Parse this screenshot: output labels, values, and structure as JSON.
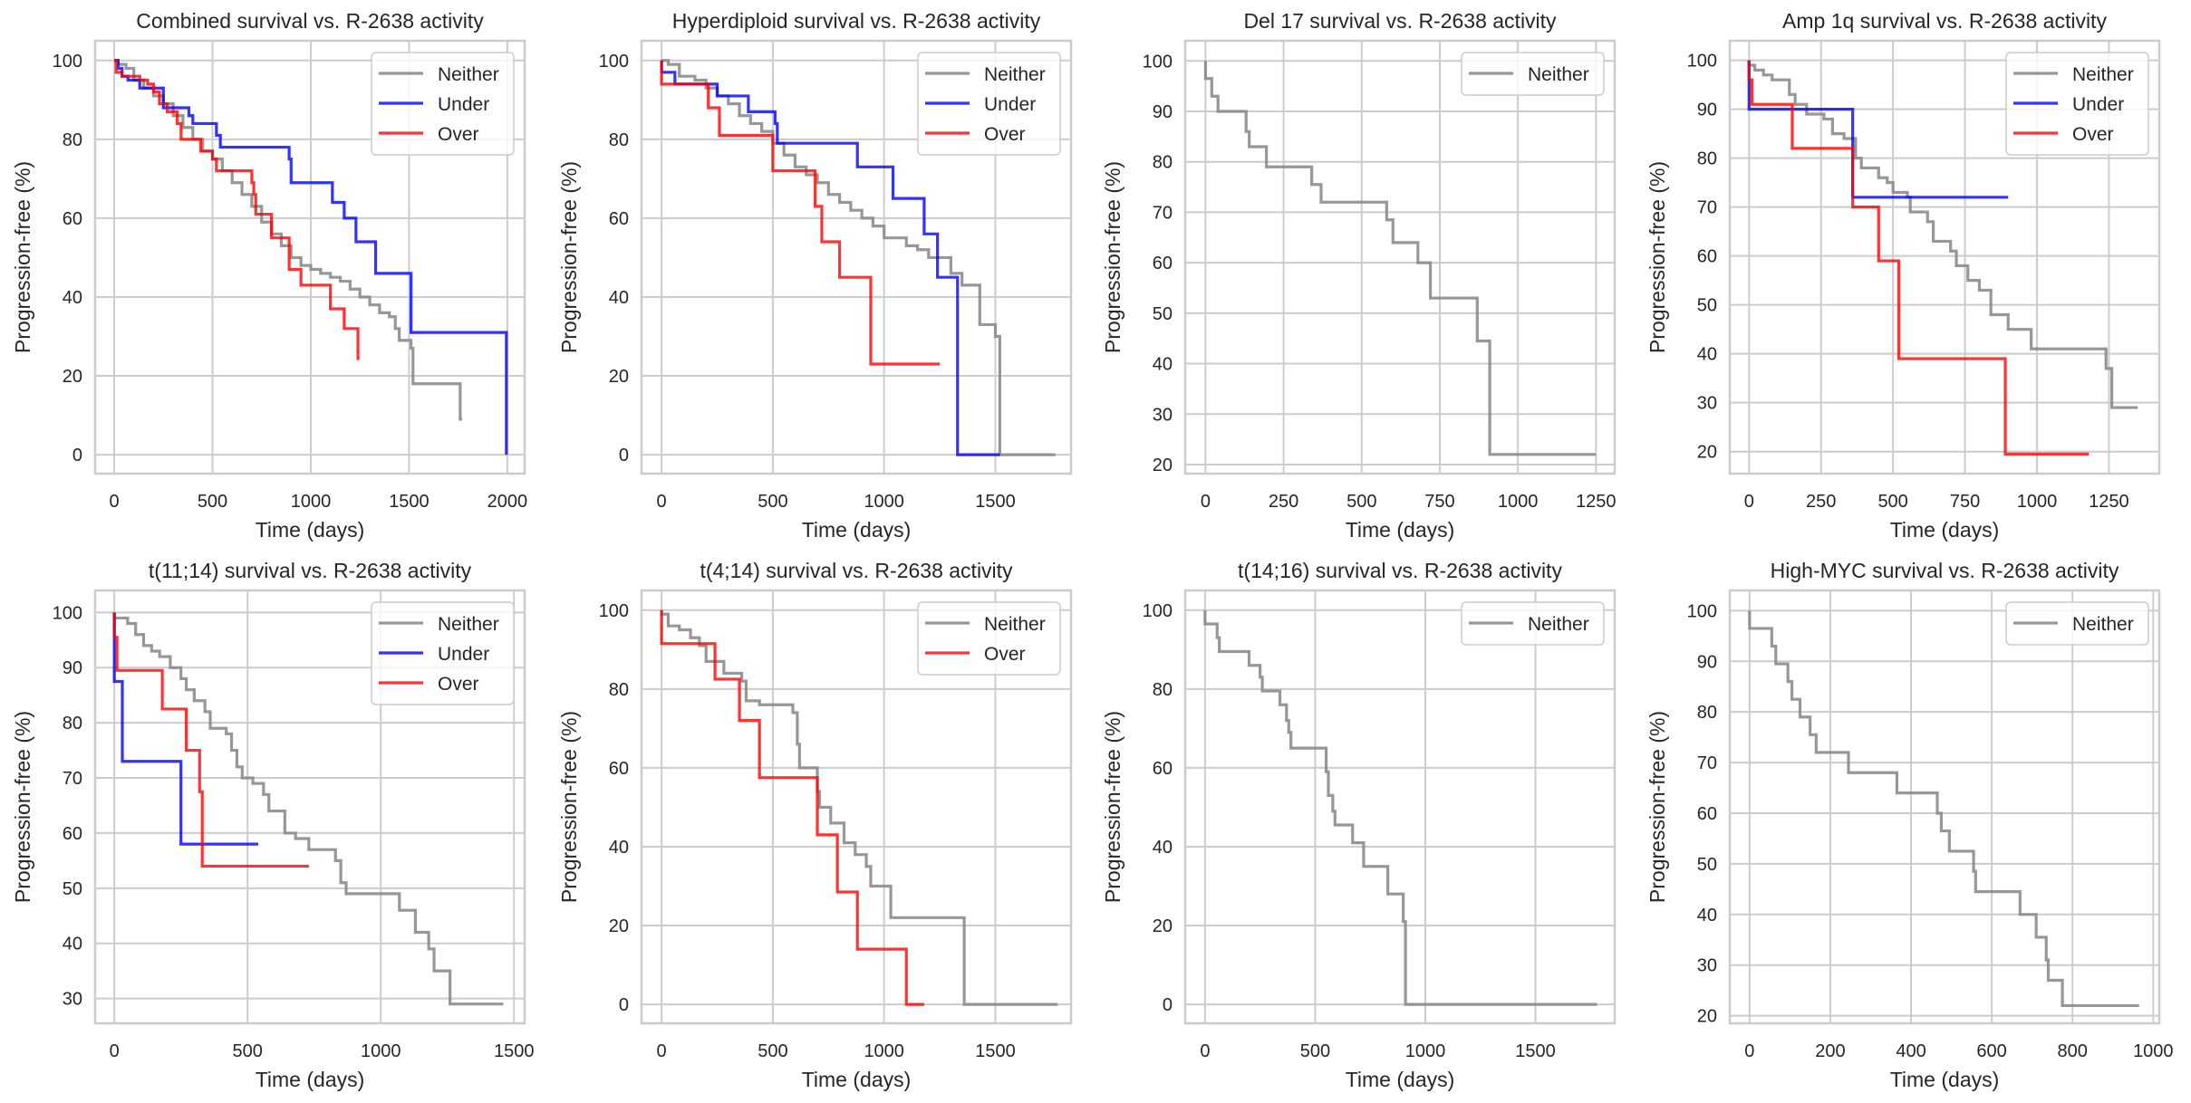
{
  "figure": {
    "colors": {
      "Neither": "#8c8c8c",
      "Under": "#0000ff",
      "Over": "#ff0000",
      "grid": "#cccccc",
      "spine": "#cccccc",
      "text": "#262626"
    }
  },
  "chart_data": [
    {
      "type": "line",
      "step": true,
      "title": "Combined survival vs. R-2638 activity",
      "xlabel": "Time (days)",
      "ylabel": "Progression-free (%)",
      "xlim": [
        -97,
        2088
      ],
      "ylim": [
        -4.8,
        105
      ],
      "xticks": [
        0,
        500,
        1000,
        1500,
        2000
      ],
      "yticks": [
        0,
        20,
        40,
        60,
        80,
        100
      ],
      "grid": true,
      "legend": "top-right",
      "series": [
        {
          "name": "Neither",
          "x": [
            0,
            20,
            60,
            100,
            150,
            200,
            250,
            300,
            350,
            400,
            450,
            500,
            550,
            600,
            650,
            700,
            750,
            800,
            850,
            900,
            950,
            1000,
            1050,
            1100,
            1150,
            1200,
            1250,
            1300,
            1350,
            1400,
            1430,
            1450,
            1510,
            1520,
            1760,
            1770
          ],
          "y": [
            100,
            99,
            98,
            95,
            93,
            91,
            89,
            86,
            83,
            80,
            77,
            75,
            72,
            69,
            66,
            63,
            59,
            56,
            53,
            50,
            48,
            47,
            46,
            45,
            44,
            42,
            40,
            38,
            36,
            35,
            32,
            29,
            27,
            18,
            9,
            9
          ]
        },
        {
          "name": "Under",
          "x": [
            0,
            20,
            40,
            70,
            130,
            250,
            270,
            380,
            400,
            500,
            520,
            540,
            870,
            890,
            900,
            1040,
            1110,
            1170,
            1230,
            1330,
            1510,
            1995
          ],
          "y": [
            100,
            98,
            96,
            95,
            93,
            88,
            88,
            86,
            84,
            84,
            81,
            78,
            78,
            75,
            69,
            69,
            64,
            60,
            54,
            46,
            31,
            0
          ]
        },
        {
          "name": "Over",
          "x": [
            0,
            10,
            40,
            130,
            170,
            200,
            230,
            270,
            320,
            340,
            440,
            500,
            520,
            700,
            710,
            720,
            800,
            890,
            950,
            1100,
            1170,
            1240
          ],
          "y": [
            100,
            97,
            96,
            95,
            94,
            92,
            89,
            87,
            84,
            80,
            77,
            75,
            72,
            69,
            66,
            61,
            55,
            47,
            43,
            37,
            32,
            24
          ]
        }
      ]
    },
    {
      "type": "line",
      "step": true,
      "title": "Hyperdiploid survival vs. R-2638 activity",
      "xlabel": "Time (days)",
      "ylabel": "Progression-free (%)",
      "xlim": [
        -90,
        1840
      ],
      "ylim": [
        -4.8,
        105
      ],
      "xticks": [
        0,
        500,
        1000,
        1500
      ],
      "yticks": [
        0,
        20,
        40,
        60,
        80,
        100
      ],
      "grid": true,
      "legend": "top-right",
      "series": [
        {
          "name": "Neither",
          "x": [
            0,
            30,
            80,
            150,
            200,
            250,
            300,
            350,
            400,
            450,
            500,
            550,
            600,
            650,
            700,
            750,
            800,
            850,
            900,
            950,
            1000,
            1050,
            1100,
            1150,
            1200,
            1250,
            1300,
            1350,
            1400,
            1430,
            1500,
            1520,
            1770
          ],
          "y": [
            100,
            99,
            96,
            95,
            93,
            91,
            89,
            86,
            84,
            82,
            79,
            76,
            73,
            71,
            69,
            66,
            64,
            62,
            60,
            58,
            55,
            55,
            53,
            52,
            50,
            50,
            46,
            43,
            43,
            33,
            30,
            0,
            0
          ]
        },
        {
          "name": "Under",
          "x": [
            0,
            60,
            250,
            390,
            510,
            520,
            880,
            1040,
            1180,
            1240,
            1330,
            1520
          ],
          "y": [
            97,
            94,
            91,
            87,
            84,
            79,
            73,
            65,
            56,
            45,
            0,
            0
          ]
        },
        {
          "name": "Over",
          "x": [
            0,
            210,
            260,
            500,
            690,
            720,
            800,
            940,
            1250
          ],
          "y": [
            94,
            88,
            81,
            72,
            63,
            54,
            45,
            23,
            23
          ]
        }
      ]
    },
    {
      "type": "line",
      "step": true,
      "title": "Del 17 survival vs. R-2638 activity",
      "xlabel": "Time (days)",
      "ylabel": "Progression-free (%)",
      "xlim": [
        -65,
        1310
      ],
      "ylim": [
        18.2,
        104
      ],
      "xticks": [
        0,
        250,
        500,
        750,
        1000,
        1250
      ],
      "yticks": [
        20,
        30,
        40,
        50,
        60,
        70,
        80,
        90,
        100
      ],
      "grid": true,
      "legend": "top-right",
      "series": [
        {
          "name": "Neither",
          "x": [
            0,
            20,
            40,
            130,
            140,
            195,
            340,
            370,
            580,
            600,
            680,
            720,
            870,
            910,
            1250
          ],
          "y": [
            96.5,
            93,
            90,
            86,
            83,
            79,
            75.5,
            72,
            68.5,
            64,
            60,
            53,
            44.5,
            22,
            22
          ]
        }
      ]
    },
    {
      "type": "line",
      "step": true,
      "title": "Amp 1q survival vs. R-2638 activity",
      "xlabel": "Time (days)",
      "ylabel": "Progression-free (%)",
      "xlim": [
        -67,
        1425
      ],
      "ylim": [
        15.5,
        104
      ],
      "xticks": [
        0,
        250,
        500,
        750,
        1000,
        1250
      ],
      "yticks": [
        20,
        30,
        40,
        50,
        60,
        70,
        80,
        90,
        100
      ],
      "grid": true,
      "legend": "top-right",
      "series": [
        {
          "name": "Neither",
          "x": [
            0,
            20,
            50,
            80,
            140,
            160,
            200,
            260,
            290,
            330,
            370,
            390,
            450,
            480,
            500,
            550,
            560,
            620,
            640,
            700,
            720,
            760,
            800,
            840,
            900,
            980,
            1240,
            1260,
            1350
          ],
          "y": [
            99,
            98,
            97,
            96,
            93,
            91,
            89,
            88,
            85,
            84,
            80,
            78,
            76,
            75,
            73,
            72,
            69,
            67,
            63,
            61,
            58,
            55,
            53,
            48,
            45,
            41,
            37,
            29,
            29
          ]
        },
        {
          "name": "Under",
          "x": [
            0,
            360,
            900
          ],
          "y": [
            90,
            72,
            72
          ]
        },
        {
          "name": "Over",
          "x": [
            0,
            10,
            150,
            360,
            450,
            520,
            890,
            1180
          ],
          "y": [
            96,
            91,
            82,
            70,
            59,
            39,
            19.5,
            19.5
          ]
        }
      ]
    },
    {
      "type": "line",
      "step": true,
      "title": "t(11;14) survival vs. R-2638 activity",
      "xlabel": "Time (days)",
      "ylabel": "Progression-free (%)",
      "xlim": [
        -72,
        1540
      ],
      "ylim": [
        25.5,
        104
      ],
      "xticks": [
        0,
        500,
        1000,
        1500
      ],
      "yticks": [
        30,
        40,
        50,
        60,
        70,
        80,
        90,
        100
      ],
      "grid": true,
      "legend": "top-right",
      "series": [
        {
          "name": "Neither",
          "x": [
            0,
            50,
            80,
            110,
            140,
            170,
            210,
            250,
            270,
            300,
            340,
            360,
            420,
            440,
            460,
            480,
            520,
            560,
            580,
            640,
            680,
            730,
            830,
            850,
            870,
            1070,
            1130,
            1180,
            1200,
            1260,
            1460
          ],
          "y": [
            99,
            98,
            96,
            94,
            93,
            92,
            90,
            88,
            86,
            84,
            82,
            79,
            78,
            75,
            72,
            70,
            69,
            67,
            64,
            60,
            59,
            57,
            55,
            51,
            49,
            46,
            42,
            39,
            35,
            29,
            29
          ]
        },
        {
          "name": "Under",
          "x": [
            0,
            30,
            250,
            540
          ],
          "y": [
            87.5,
            73,
            58,
            58
          ]
        },
        {
          "name": "Over",
          "x": [
            0,
            10,
            180,
            270,
            320,
            330,
            730
          ],
          "y": [
            95.5,
            89.5,
            82.5,
            75,
            67.5,
            54,
            54
          ]
        }
      ]
    },
    {
      "type": "line",
      "step": true,
      "title": "t(4;14) survival vs. R-2638 activity",
      "xlabel": "Time (days)",
      "ylabel": "Progression-free (%)",
      "xlim": [
        -90,
        1840
      ],
      "ylim": [
        -4.8,
        105
      ],
      "xticks": [
        0,
        500,
        1000,
        1500
      ],
      "yticks": [
        0,
        20,
        40,
        60,
        80,
        100
      ],
      "grid": true,
      "legend": "top-right",
      "series": [
        {
          "name": "Neither",
          "x": [
            0,
            30,
            80,
            130,
            170,
            200,
            280,
            360,
            380,
            440,
            590,
            610,
            620,
            630,
            700,
            710,
            760,
            820,
            870,
            920,
            940,
            1030,
            1360,
            1780
          ],
          "y": [
            99,
            96,
            95,
            93,
            91,
            87,
            84,
            82,
            77,
            76,
            74,
            66,
            60,
            60,
            54,
            50,
            46,
            41,
            38,
            35,
            30,
            22,
            0,
            0
          ]
        },
        {
          "name": "Over",
          "x": [
            0,
            240,
            350,
            440,
            700,
            790,
            880,
            1100,
            1180
          ],
          "y": [
            91.5,
            82.5,
            72,
            57.5,
            43,
            28.5,
            14,
            0,
            0
          ]
        }
      ]
    },
    {
      "type": "line",
      "step": true,
      "title": "t(14;16) survival vs. R-2638 activity",
      "xlabel": "Time (days)",
      "ylabel": "Progression-free (%)",
      "xlim": [
        -90,
        1860
      ],
      "ylim": [
        -4.8,
        105
      ],
      "xticks": [
        0,
        500,
        1000,
        1500
      ],
      "yticks": [
        0,
        20,
        40,
        60,
        80,
        100
      ],
      "grid": true,
      "legend": "top-right",
      "series": [
        {
          "name": "Neither",
          "x": [
            0,
            55,
            65,
            200,
            250,
            260,
            340,
            370,
            380,
            390,
            550,
            560,
            580,
            590,
            670,
            720,
            830,
            900,
            910,
            1780
          ],
          "y": [
            96.5,
            93,
            89.5,
            86,
            83,
            79.5,
            76,
            72,
            69,
            65,
            59,
            53,
            49,
            45.5,
            41,
            35,
            28,
            21,
            0,
            0
          ]
        }
      ]
    },
    {
      "type": "line",
      "step": true,
      "title": "High-MYC survival vs. R-2638 activity",
      "xlabel": "Time (days)",
      "ylabel": "Progression-free (%)",
      "xlim": [
        -49,
        1015
      ],
      "ylim": [
        18.5,
        104
      ],
      "xticks": [
        0,
        200,
        400,
        600,
        800,
        1000
      ],
      "yticks": [
        20,
        30,
        40,
        50,
        60,
        70,
        80,
        90,
        100
      ],
      "grid": true,
      "legend": "top-right",
      "series": [
        {
          "name": "Neither",
          "x": [
            0,
            55,
            65,
            95,
            105,
            125,
            150,
            165,
            245,
            365,
            465,
            475,
            495,
            555,
            560,
            670,
            710,
            735,
            740,
            775,
            965
          ],
          "y": [
            96.5,
            93,
            89.5,
            86,
            82.5,
            79,
            75.5,
            72,
            68,
            64,
            60,
            56.5,
            52.5,
            48.5,
            44.5,
            40,
            35.5,
            31,
            27,
            22,
            22
          ]
        }
      ]
    }
  ]
}
